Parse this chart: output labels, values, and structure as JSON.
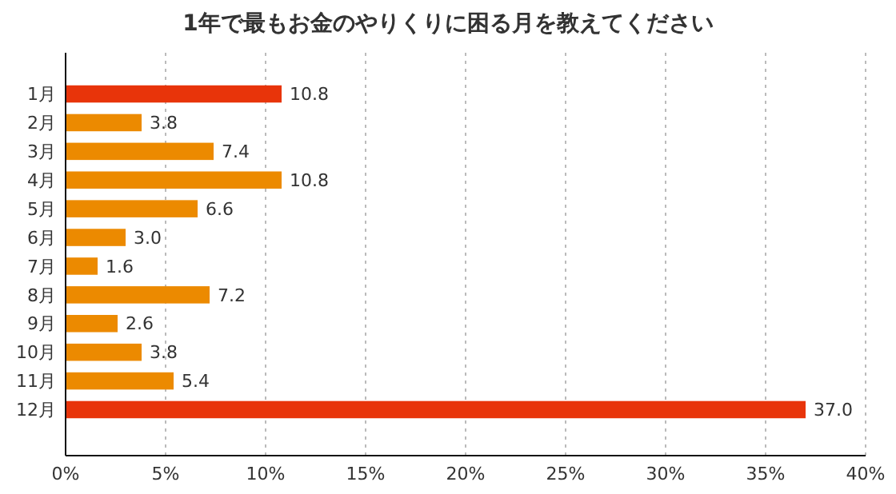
{
  "chart_data": {
    "type": "bar",
    "orientation": "horizontal",
    "title": "1年で最もお金のやりくりに困る月を教えてください",
    "categories": [
      "1月",
      "2月",
      "3月",
      "4月",
      "5月",
      "6月",
      "7月",
      "8月",
      "9月",
      "10月",
      "11月",
      "12月"
    ],
    "values": [
      10.8,
      3.8,
      7.4,
      10.8,
      6.6,
      3.0,
      1.6,
      7.2,
      2.6,
      3.8,
      5.4,
      37.0
    ],
    "colors": [
      "#e8340a",
      "#ec8a00",
      "#ec8a00",
      "#ec8a00",
      "#ec8a00",
      "#ec8a00",
      "#ec8a00",
      "#ec8a00",
      "#ec8a00",
      "#ec8a00",
      "#ec8a00",
      "#e8340a"
    ],
    "value_labels": [
      "10.8",
      "3.8",
      "7.4",
      "10.8",
      "6.6",
      "3.0",
      "1.6",
      "7.2",
      "2.6",
      "3.8",
      "5.4",
      "37.0"
    ],
    "xlim": [
      0,
      40
    ],
    "xticks": [
      {
        "value": 0,
        "label": "0%"
      },
      {
        "value": 5,
        "label": "5%"
      },
      {
        "value": 10,
        "label": "10%"
      },
      {
        "value": 15,
        "label": "15%"
      },
      {
        "value": 20,
        "label": "20%"
      },
      {
        "value": 25,
        "label": "25%"
      },
      {
        "value": 30,
        "label": "30%"
      },
      {
        "value": 35,
        "label": "35%"
      },
      {
        "value": 40,
        "label": "40%"
      }
    ],
    "grid": "x"
  }
}
